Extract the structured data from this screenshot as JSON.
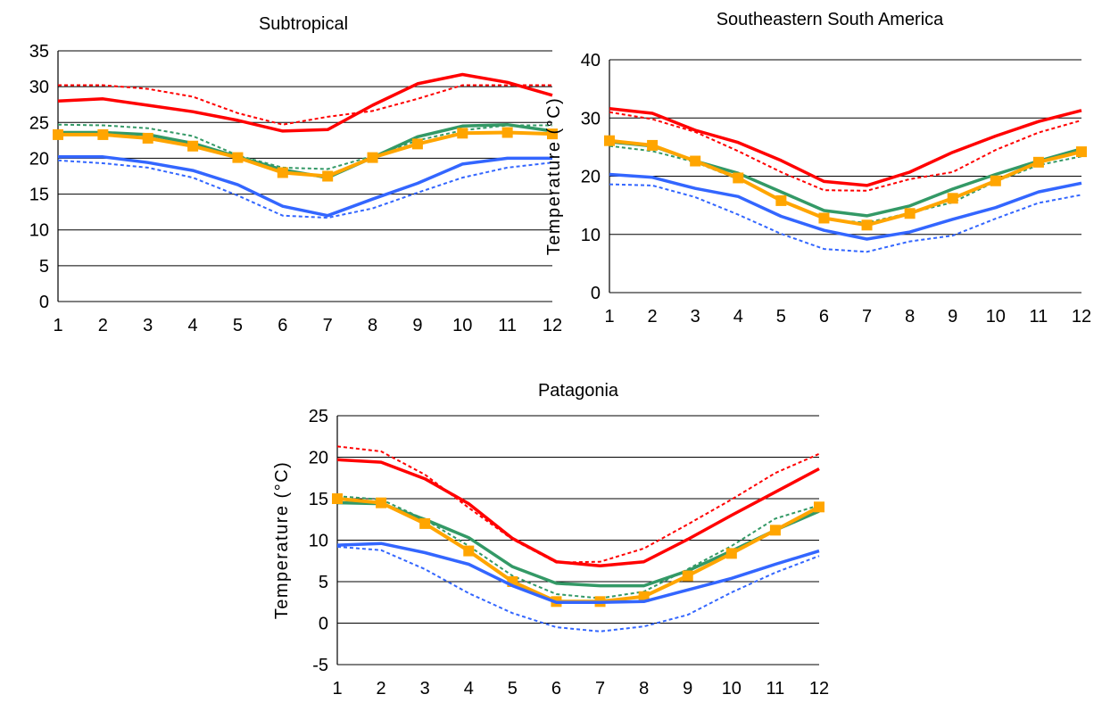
{
  "chart_data": [
    {
      "type": "line",
      "title": "Subtropical",
      "xlabel": "",
      "ylabel": "",
      "x": [
        1,
        2,
        3,
        4,
        5,
        6,
        7,
        8,
        9,
        10,
        11,
        12
      ],
      "ylim": [
        0,
        35
      ],
      "yticks": [
        0,
        5,
        10,
        15,
        20,
        25,
        30,
        35
      ],
      "grid": true,
      "series": [
        {
          "color": "#ff0000",
          "style": "solid",
          "values": [
            28.0,
            28.3,
            27.4,
            26.5,
            25.3,
            23.8,
            24.0,
            27.4,
            30.4,
            31.7,
            30.6,
            28.8
          ]
        },
        {
          "color": "#ff0000",
          "style": "dotted",
          "values": [
            30.2,
            30.2,
            29.7,
            28.6,
            26.3,
            24.7,
            25.8,
            26.6,
            28.3,
            30.2,
            30.2,
            30.2
          ]
        },
        {
          "color": "#339966",
          "style": "solid",
          "values": [
            23.6,
            23.6,
            23.3,
            22.1,
            20.2,
            18.4,
            17.3,
            20.1,
            23.0,
            24.5,
            24.7,
            23.8
          ]
        },
        {
          "color": "#339966",
          "style": "dotted",
          "values": [
            24.7,
            24.6,
            24.2,
            23.1,
            20.4,
            18.7,
            18.5,
            20.3,
            22.5,
            23.9,
            24.6,
            24.6
          ]
        },
        {
          "color": "#ffa500",
          "style": "solid-marker",
          "values": [
            23.3,
            23.3,
            22.8,
            21.7,
            20.1,
            18.0,
            17.5,
            20.1,
            22.0,
            23.5,
            23.6,
            23.4
          ]
        },
        {
          "color": "#3366ff",
          "style": "solid",
          "values": [
            20.2,
            20.2,
            19.4,
            18.3,
            16.3,
            13.3,
            12.0,
            14.3,
            16.5,
            19.2,
            20.0,
            20.0
          ]
        },
        {
          "color": "#3366ff",
          "style": "dotted",
          "values": [
            19.7,
            19.3,
            18.7,
            17.3,
            14.8,
            12.0,
            11.7,
            13.0,
            15.2,
            17.3,
            18.7,
            19.4
          ]
        }
      ]
    },
    {
      "type": "line",
      "title": "Southeastern South America",
      "xlabel": "",
      "ylabel": "Temperature (°C)",
      "x": [
        1,
        2,
        3,
        4,
        5,
        6,
        7,
        8,
        9,
        10,
        11,
        12
      ],
      "ylim": [
        0,
        40
      ],
      "yticks": [
        0,
        10,
        20,
        30,
        40
      ],
      "grid": true,
      "series": [
        {
          "color": "#ff0000",
          "style": "solid",
          "values": [
            31.6,
            30.8,
            27.9,
            25.8,
            22.7,
            19.1,
            18.4,
            20.7,
            24.1,
            26.9,
            29.4,
            31.3
          ]
        },
        {
          "color": "#ff0000",
          "style": "dotted",
          "values": [
            31.0,
            29.8,
            27.6,
            24.3,
            20.7,
            17.6,
            17.5,
            19.5,
            20.7,
            24.5,
            27.5,
            29.6
          ]
        },
        {
          "color": "#339966",
          "style": "solid",
          "values": [
            25.9,
            25.2,
            22.6,
            20.5,
            17.3,
            14.1,
            13.2,
            14.9,
            17.8,
            20.3,
            22.6,
            24.7
          ]
        },
        {
          "color": "#339966",
          "style": "dotted",
          "values": [
            25.2,
            24.3,
            22.4,
            19.5,
            16.0,
            12.6,
            12.0,
            13.7,
            15.5,
            19.1,
            21.9,
            23.4
          ]
        },
        {
          "color": "#ffa500",
          "style": "solid-marker",
          "values": [
            26.1,
            25.3,
            22.6,
            19.7,
            15.8,
            12.8,
            11.6,
            13.6,
            16.2,
            19.2,
            22.4,
            24.2
          ]
        },
        {
          "color": "#3366ff",
          "style": "solid",
          "values": [
            20.3,
            19.8,
            17.9,
            16.5,
            13.1,
            10.7,
            9.2,
            10.4,
            12.6,
            14.6,
            17.3,
            18.8
          ]
        },
        {
          "color": "#3366ff",
          "style": "dotted",
          "values": [
            18.6,
            18.4,
            16.4,
            13.4,
            10.1,
            7.5,
            7.0,
            8.8,
            9.8,
            12.7,
            15.4,
            16.8
          ]
        }
      ]
    },
    {
      "type": "line",
      "title": "Patagonia",
      "xlabel": "",
      "ylabel": "Temperature (°C)",
      "x": [
        1,
        2,
        3,
        4,
        5,
        6,
        7,
        8,
        9,
        10,
        11,
        12
      ],
      "ylim": [
        -5,
        25
      ],
      "yticks": [
        -5,
        0,
        5,
        10,
        15,
        20,
        25
      ],
      "grid": true,
      "series": [
        {
          "color": "#ff0000",
          "style": "solid",
          "values": [
            19.7,
            19.4,
            17.4,
            14.4,
            10.2,
            7.4,
            6.9,
            7.4,
            10.1,
            13.0,
            15.8,
            18.6
          ]
        },
        {
          "color": "#ff0000",
          "style": "dotted",
          "values": [
            21.3,
            20.7,
            17.9,
            13.9,
            10.1,
            7.3,
            7.4,
            9.0,
            11.9,
            14.9,
            18.1,
            20.4
          ]
        },
        {
          "color": "#339966",
          "style": "solid",
          "values": [
            14.5,
            14.4,
            12.5,
            10.3,
            6.8,
            4.8,
            4.5,
            4.5,
            6.3,
            8.7,
            11.2,
            13.5
          ]
        },
        {
          "color": "#339966",
          "style": "dotted",
          "values": [
            15.3,
            14.9,
            12.5,
            9.3,
            5.7,
            3.5,
            3.0,
            3.8,
            6.5,
            9.3,
            12.6,
            14.2
          ]
        },
        {
          "color": "#ffa500",
          "style": "solid-marker",
          "values": [
            15.0,
            14.5,
            12.0,
            8.7,
            5.0,
            2.6,
            2.6,
            3.2,
            5.7,
            8.4,
            11.2,
            14.0
          ]
        },
        {
          "color": "#3366ff",
          "style": "solid",
          "values": [
            9.4,
            9.6,
            8.5,
            7.1,
            4.5,
            2.5,
            2.5,
            2.6,
            4.0,
            5.4,
            7.1,
            8.7
          ]
        },
        {
          "color": "#3366ff",
          "style": "dotted",
          "values": [
            9.2,
            8.8,
            6.5,
            3.6,
            1.2,
            -0.5,
            -1.0,
            -0.4,
            1.0,
            3.7,
            6.1,
            8.1
          ]
        }
      ]
    }
  ]
}
